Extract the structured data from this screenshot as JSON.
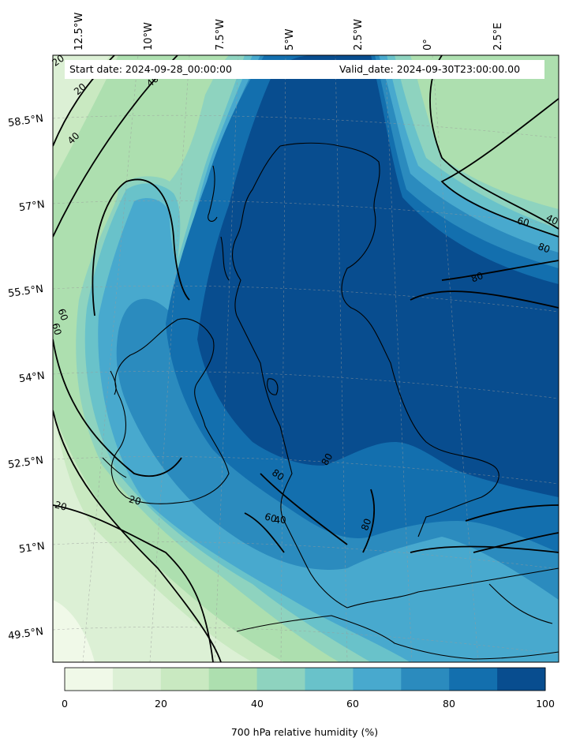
{
  "map": {
    "start_date": "Start date: 2024-09-28_00:00:00",
    "valid_date": "Valid_date: 2024-09-30T23:00:00.00",
    "lon_labels": [
      "12.5°W",
      "10°W",
      "7.5°W",
      "5°W",
      "2.5°W",
      "0°",
      "2.5°E"
    ],
    "lat_labels": [
      "58.5°N",
      "57°N",
      "55.5°N",
      "54°N",
      "52.5°N",
      "51°N",
      "49.5°N"
    ],
    "contour_labels": [
      "20",
      "20",
      "40",
      "40",
      "60",
      "60",
      "60",
      "40",
      "80",
      "80",
      "80",
      "80",
      "80",
      "60",
      "20",
      "20",
      "40"
    ]
  },
  "colorbar": {
    "title": "700 hPa relative humidity (%)",
    "ticks": [
      "0",
      "20",
      "40",
      "60",
      "80",
      "100"
    ],
    "levels": [
      0,
      10,
      20,
      30,
      40,
      50,
      60,
      70,
      80,
      90,
      100
    ],
    "colors": [
      "#f0f9e8",
      "#dcf0d5",
      "#c9e9c1",
      "#addfaf",
      "#8ed3bf",
      "#69c2ca",
      "#48a9ce",
      "#2b8bbe",
      "#136fae",
      "#084d8f"
    ]
  }
}
